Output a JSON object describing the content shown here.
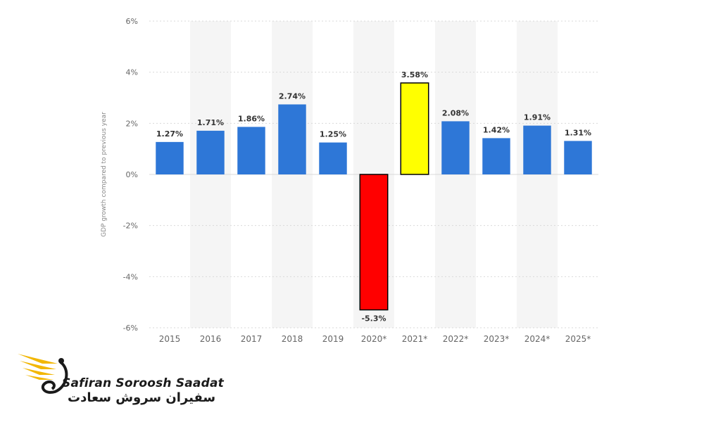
{
  "chart_data": {
    "type": "bar",
    "ylabel": "GDP growth compared to previous year",
    "categories": [
      "2015",
      "2016",
      "2017",
      "2018",
      "2019",
      "2020*",
      "2021*",
      "2022*",
      "2023*",
      "2024*",
      "2025*"
    ],
    "values": [
      1.27,
      1.71,
      1.86,
      2.74,
      1.25,
      -5.3,
      3.58,
      2.08,
      1.42,
      1.91,
      1.31
    ],
    "data_labels": [
      "1.27%",
      "1.71%",
      "1.86%",
      "2.74%",
      "1.25%",
      "-5.3%",
      "3.58%",
      "2.08%",
      "1.42%",
      "1.91%",
      "1.31%"
    ],
    "y_ticks": [
      6,
      4,
      2,
      0,
      -2,
      -4,
      -6
    ],
    "y_tick_labels": [
      "6%",
      "4%",
      "2%",
      "0%",
      "-2%",
      "-4%",
      "-6%"
    ],
    "ylim": [
      -6,
      6
    ],
    "grid": true,
    "colors": {
      "default": "#2e77d7",
      "highlight_negative": "#ff0000",
      "highlight_positive": "#ffff00",
      "highlight_stroke": "#000000",
      "grid": "#d9d9d9",
      "column_band": "#f5f5f5",
      "tick_text": "#666666"
    },
    "bar_colors": [
      "#2e77d7",
      "#2e77d7",
      "#2e77d7",
      "#2e77d7",
      "#2e77d7",
      "#ff0000",
      "#ffff00",
      "#2e77d7",
      "#2e77d7",
      "#2e77d7",
      "#2e77d7"
    ]
  },
  "logo": {
    "text_en": "Safiran Soroosh Saadat",
    "text_fa": "سفیران سروش سعادت",
    "colors": {
      "wing": "#f2b705",
      "text": "#1a1a1a"
    }
  }
}
